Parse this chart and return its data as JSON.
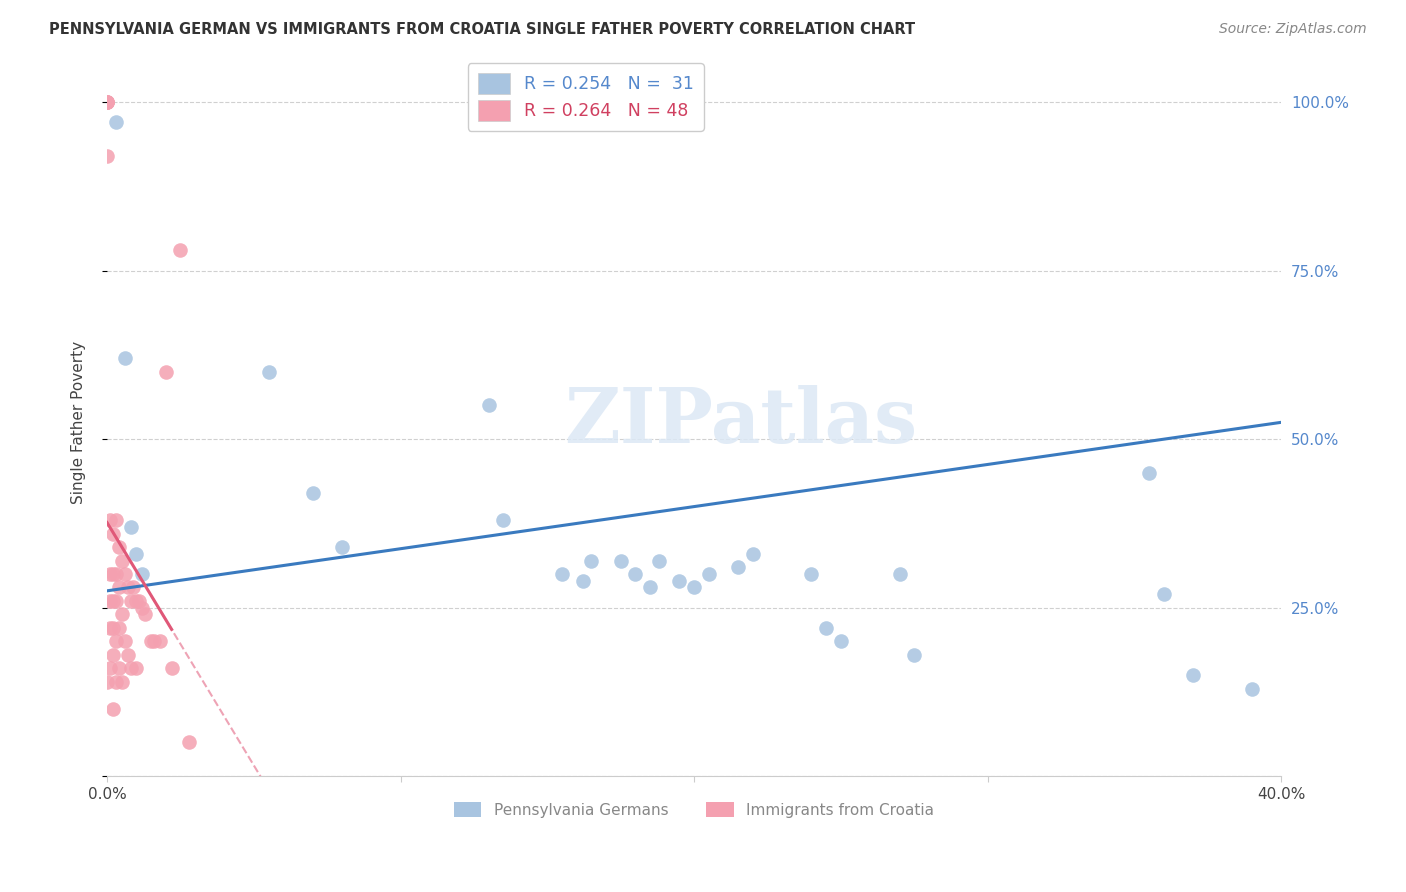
{
  "title": "PENNSYLVANIA GERMAN VS IMMIGRANTS FROM CROATIA SINGLE FATHER POVERTY CORRELATION CHART",
  "source": "Source: ZipAtlas.com",
  "ylabel": "Single Father Poverty",
  "xlim": [
    0.0,
    0.4
  ],
  "ylim": [
    0.0,
    1.05
  ],
  "yticks": [
    0.0,
    0.25,
    0.5,
    0.75,
    1.0
  ],
  "ytick_labels": [
    "",
    "25.0%",
    "50.0%",
    "75.0%",
    "100.0%"
  ],
  "xticks": [
    0.0,
    0.1,
    0.2,
    0.3,
    0.4
  ],
  "xtick_labels": [
    "0.0%",
    "",
    "",
    "",
    "40.0%"
  ],
  "legend_blue_r": "R = 0.254",
  "legend_blue_n": "N =  31",
  "legend_pink_r": "R = 0.264",
  "legend_pink_n": "N = 48",
  "blue_color": "#a8c4e0",
  "pink_color": "#f4a0b0",
  "blue_line_color": "#3a7abf",
  "pink_line_color": "#e05878",
  "background_color": "#ffffff",
  "watermark": "ZIPatlas",
  "blue_scatter_x": [
    0.003,
    0.006,
    0.008,
    0.01,
    0.012,
    0.055,
    0.07,
    0.08,
    0.13,
    0.135,
    0.155,
    0.162,
    0.165,
    0.175,
    0.18,
    0.185,
    0.188,
    0.195,
    0.2,
    0.205,
    0.215,
    0.22,
    0.24,
    0.245,
    0.25,
    0.27,
    0.275,
    0.355,
    0.36,
    0.37,
    0.39
  ],
  "blue_scatter_y": [
    0.97,
    0.62,
    0.37,
    0.33,
    0.3,
    0.6,
    0.42,
    0.34,
    0.55,
    0.38,
    0.3,
    0.29,
    0.32,
    0.32,
    0.3,
    0.28,
    0.32,
    0.29,
    0.28,
    0.3,
    0.31,
    0.33,
    0.3,
    0.22,
    0.2,
    0.3,
    0.18,
    0.45,
    0.27,
    0.15,
    0.13
  ],
  "pink_scatter_x": [
    0.0,
    0.0,
    0.0,
    0.0,
    0.0,
    0.0,
    0.001,
    0.001,
    0.001,
    0.001,
    0.001,
    0.002,
    0.002,
    0.002,
    0.002,
    0.002,
    0.002,
    0.003,
    0.003,
    0.003,
    0.003,
    0.003,
    0.004,
    0.004,
    0.004,
    0.004,
    0.005,
    0.005,
    0.005,
    0.006,
    0.006,
    0.007,
    0.007,
    0.008,
    0.008,
    0.009,
    0.01,
    0.01,
    0.011,
    0.012,
    0.013,
    0.015,
    0.016,
    0.018,
    0.02,
    0.022,
    0.025,
    0.028
  ],
  "pink_scatter_y": [
    1.0,
    1.0,
    1.0,
    1.0,
    0.92,
    0.14,
    0.38,
    0.3,
    0.26,
    0.22,
    0.16,
    0.36,
    0.3,
    0.26,
    0.22,
    0.18,
    0.1,
    0.38,
    0.3,
    0.26,
    0.2,
    0.14,
    0.34,
    0.28,
    0.22,
    0.16,
    0.32,
    0.24,
    0.14,
    0.3,
    0.2,
    0.28,
    0.18,
    0.26,
    0.16,
    0.28,
    0.26,
    0.16,
    0.26,
    0.25,
    0.24,
    0.2,
    0.2,
    0.2,
    0.6,
    0.16,
    0.78,
    0.05
  ]
}
